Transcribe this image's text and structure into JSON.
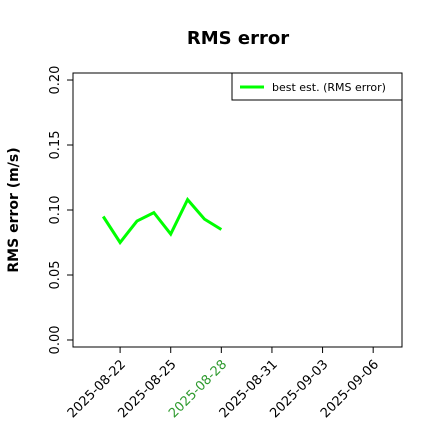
{
  "chart_data": {
    "type": "line",
    "title": "RMS error",
    "ylabel": "RMS error (m/s)",
    "x": [
      "2025-08-21",
      "2025-08-22",
      "2025-08-23",
      "2025-08-24",
      "2025-08-25",
      "2025-08-26",
      "2025-08-27",
      "2025-08-28"
    ],
    "series": [
      {
        "name": "best est. (RMS error)",
        "color": "#00ff00",
        "values": [
          0.095,
          0.075,
          0.0915,
          0.098,
          0.0815,
          0.108,
          0.093,
          0.085
        ]
      }
    ],
    "xlim": [
      "2025-08-19T05:00Z",
      "2025-09-07T17:00Z"
    ],
    "xticks": [
      "2025-08-22",
      "2025-08-25",
      "2025-08-28",
      "2025-08-31",
      "2025-09-03",
      "2025-09-06"
    ],
    "highlighted_xtick": "2025-08-28",
    "highlight_color": "#2e9a2e",
    "ylim": [
      -0.0054,
      0.2054
    ],
    "yticks": [
      {
        "value": 0,
        "label": "0.00"
      },
      {
        "value": 0.05,
        "label": "0.05"
      },
      {
        "value": 0.1,
        "label": "0.10"
      },
      {
        "value": 0.15,
        "label": "0.15"
      },
      {
        "value": 0.2,
        "label": "0.20"
      }
    ],
    "legend": "upper right"
  }
}
